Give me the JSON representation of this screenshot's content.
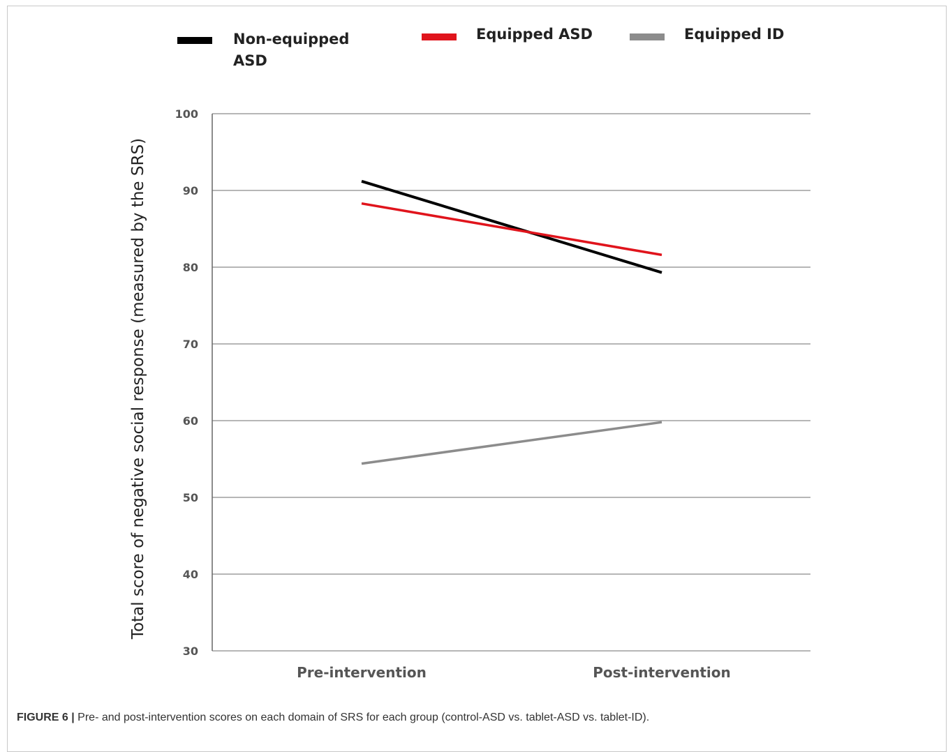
{
  "chart_data": {
    "type": "line",
    "categories": [
      "Pre-intervention",
      "Post-intervention"
    ],
    "ylabel": "Total score of negative social response (measured by the SRS)",
    "ylim": [
      30,
      100
    ],
    "yticks": [
      100,
      90,
      80,
      70,
      60,
      50,
      40,
      30
    ],
    "grid": true,
    "legend_position": "top",
    "series": [
      {
        "name": "Non-equipped ASD",
        "name_lines": [
          "Non-equipped",
          "ASD"
        ],
        "color": "#000000",
        "values": [
          91.2,
          79.3
        ]
      },
      {
        "name": "Equipped ASD",
        "name_lines": [
          "Equipped ASD"
        ],
        "color": "#e0141c",
        "values": [
          88.3,
          81.6
        ]
      },
      {
        "name": "Equipped ID",
        "name_lines": [
          "Equipped ID"
        ],
        "color": "#8c8c8c",
        "values": [
          54.4,
          59.8
        ]
      }
    ]
  },
  "caption": {
    "lead": "FIGURE 6 |",
    "text": " Pre- and post-intervention scores on each domain of SRS for each group (control-ASD vs. tablet-ASD vs. tablet-ID)."
  }
}
